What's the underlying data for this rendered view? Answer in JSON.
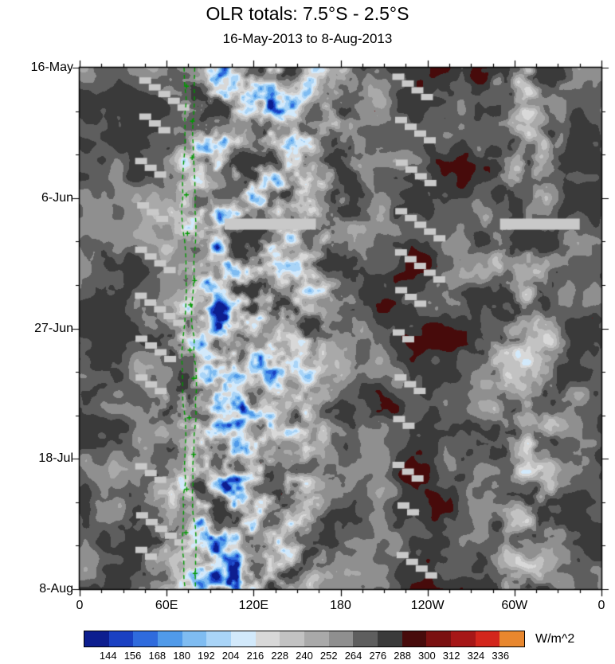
{
  "chart_data": {
    "type": "heatmap",
    "title": "OLR totals: 7.5°S - 2.5°S",
    "subtitle": "16-May-2013 to 8-Aug-2013",
    "x_axis": {
      "tick_labels": [
        "0",
        "60E",
        "120E",
        "180",
        "120W",
        "60W",
        "0"
      ],
      "range_deg": [
        0,
        360
      ],
      "major_tick_every_deg": 60,
      "minor_tick_every_deg": 15
    },
    "y_axis": {
      "tick_labels": [
        "16-May",
        "6-Jun",
        "27-Jun",
        "18-Jul",
        "8-Aug"
      ],
      "start_date": "16-May-2013",
      "end_date": "8-Aug-2013",
      "total_days": 84,
      "major_tick_every_days": 21,
      "minor_tick_every_days": 7,
      "direction": "time increases downward"
    },
    "colorbar": {
      "units": "W/m^2",
      "boundary_labels": [
        "144",
        "156",
        "168",
        "180",
        "192",
        "204",
        "216",
        "228",
        "240",
        "252",
        "264",
        "276",
        "288",
        "300",
        "312",
        "324",
        "336"
      ],
      "level_min": 144,
      "level_max": 336,
      "level_step": 12,
      "colors": [
        "#0d1e8f",
        "#1a41c2",
        "#2f6bdd",
        "#509ae9",
        "#7fbcf1",
        "#a9d4f7",
        "#d2e9fb",
        "#d8d8d8",
        "#c2c2c2",
        "#a9a9a9",
        "#8f8f8f",
        "#5e5e5e",
        "#3a3a3a",
        "#470b0b",
        "#7a1111",
        "#a61717",
        "#d3261c",
        "#e8872e"
      ]
    },
    "render_model": {
      "background_olr_range": [
        238,
        287
      ],
      "main_convective_band": {
        "lon_center_start_e": 130,
        "lon_center_end_e": 108,
        "halfwidth_deg": 52,
        "min_olr": 130
      },
      "secondary_band": {
        "lon_center_e": 307,
        "halfwidth_deg": 26,
        "min_olr": 200
      },
      "reference_lines": {
        "color": "#009900",
        "style": "dashed",
        "longitudes_e": [
          72,
          79
        ]
      },
      "missing_data": {
        "color": "#c9c9c9",
        "swath_columns_lon_e": [
          [
            37,
            62
          ],
          [
            215,
            245
          ]
        ],
        "swath_repeat_days": 7,
        "horizontal_bars": [
          {
            "time_frac": 0.3,
            "lon_span_e": [
              100,
              163
            ]
          },
          {
            "time_frac": 0.3,
            "lon_span_e": [
              290,
              345
            ]
          }
        ]
      }
    }
  }
}
